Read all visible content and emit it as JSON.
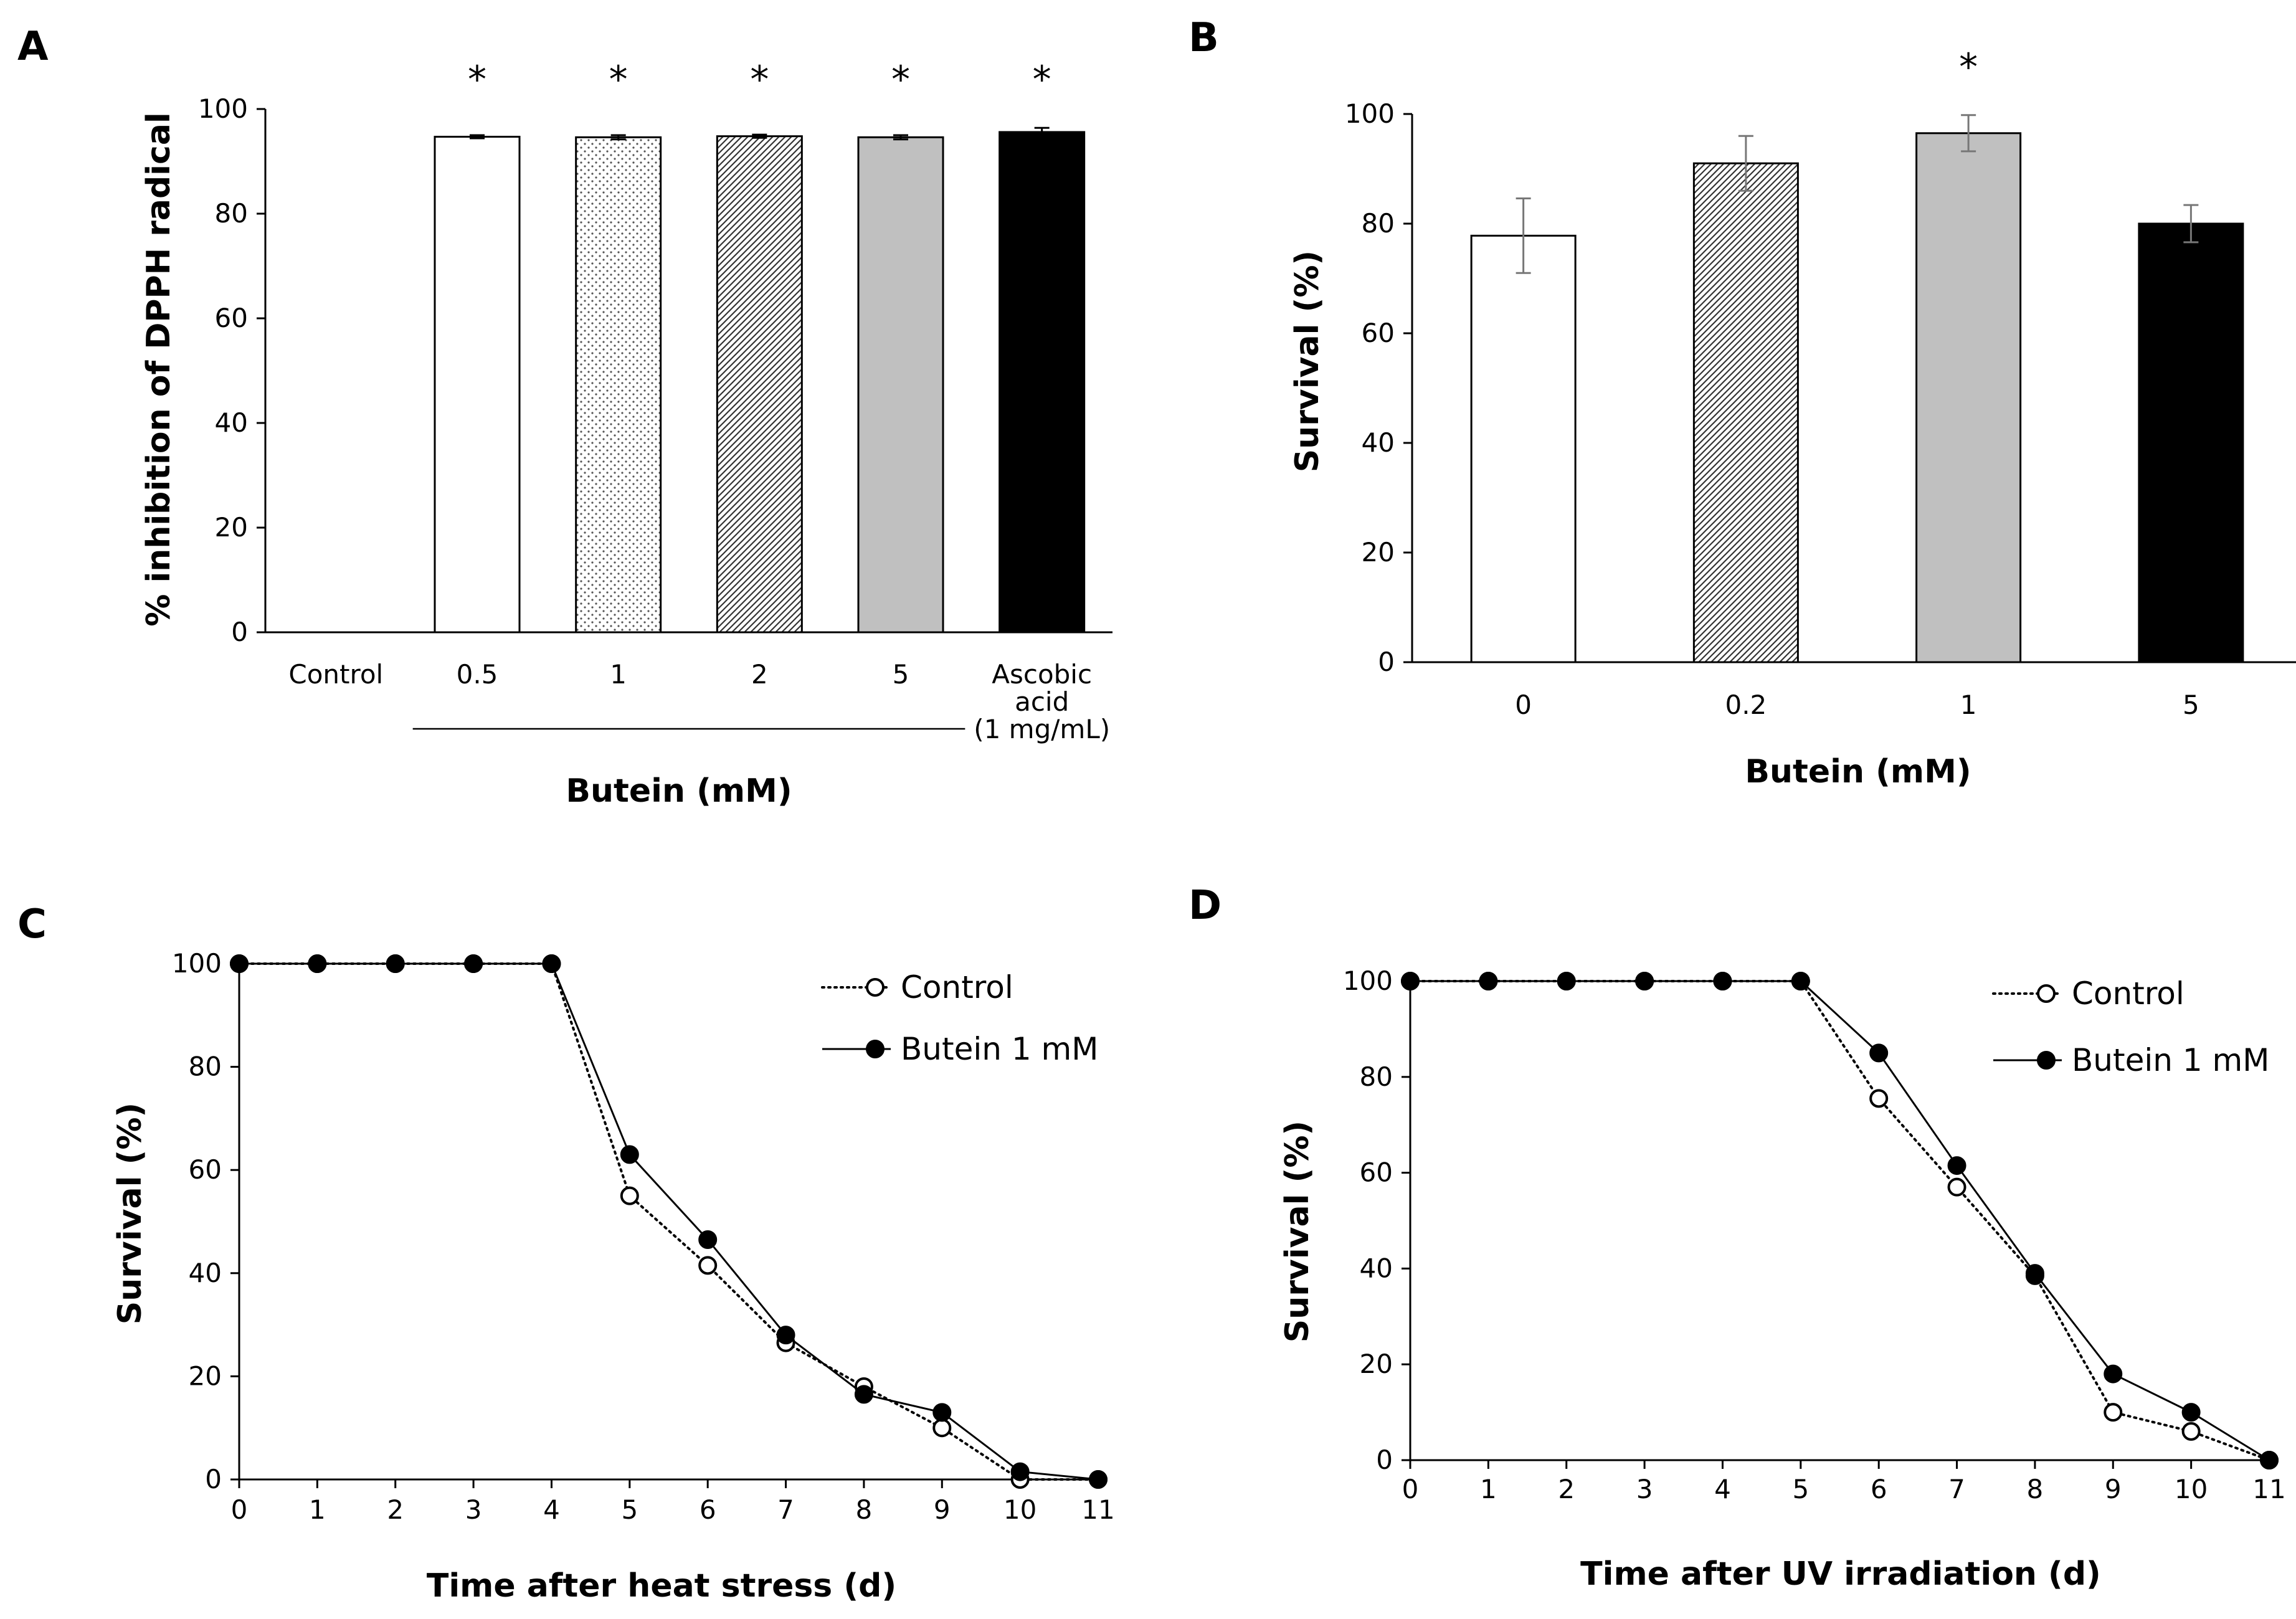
{
  "chart_data": [
    {
      "panel": "A",
      "type": "bar",
      "categories": [
        "Control",
        "0.5",
        "1",
        "2",
        "5",
        "Ascobic acid (1 mg/mL)"
      ],
      "category_lines": [
        [
          "Control"
        ],
        [
          "0.5"
        ],
        [
          "1"
        ],
        [
          "2"
        ],
        [
          "5"
        ],
        [
          "Ascobic",
          "acid",
          "(1 mg/mL)"
        ]
      ],
      "values": [
        0,
        94.7,
        94.6,
        94.8,
        94.6,
        95.6
      ],
      "errors": [
        0,
        0.3,
        0.4,
        0.3,
        0.4,
        0.8
      ],
      "fills": [
        "white",
        "white",
        "dots",
        "diagonal",
        "gray",
        "black"
      ],
      "significant": [
        false,
        true,
        true,
        true,
        true,
        true
      ],
      "significance_marker": "*",
      "ylabel": "% inhibition of DPPH radical",
      "xlabel": "Butein (mM)",
      "group_bracket": {
        "from_index": 1,
        "to_index": 4
      },
      "ylim": [
        0,
        100
      ],
      "yticks": [
        0,
        20,
        40,
        60,
        80,
        100
      ]
    },
    {
      "panel": "B",
      "type": "bar",
      "categories": [
        "0",
        "0.2",
        "1",
        "5"
      ],
      "category_lines": [
        [
          "0"
        ],
        [
          "0.2"
        ],
        [
          "1"
        ],
        [
          "5"
        ]
      ],
      "values": [
        77.8,
        91.0,
        96.5,
        80.0
      ],
      "errors": [
        6.8,
        5.0,
        3.3,
        3.4
      ],
      "fills": [
        "white",
        "diagonal",
        "gray",
        "black"
      ],
      "significant": [
        false,
        false,
        true,
        false
      ],
      "significance_marker": "*",
      "ylabel": "Survival (%)",
      "xlabel": "Butein (mM)",
      "ylim": [
        0,
        100
      ],
      "yticks": [
        0,
        20,
        40,
        60,
        80,
        100
      ]
    },
    {
      "panel": "C",
      "type": "line",
      "x": [
        0,
        1,
        2,
        3,
        4,
        5,
        6,
        7,
        8,
        9,
        10,
        11
      ],
      "series": [
        {
          "name": "Control",
          "style": "dotted-open",
          "values": [
            100,
            100,
            100,
            100,
            100,
            55,
            41.5,
            26.5,
            18,
            10,
            0,
            0
          ]
        },
        {
          "name": "Butein 1 mM",
          "style": "solid-filled",
          "values": [
            100,
            100,
            100,
            100,
            100,
            63,
            46.5,
            28,
            16.5,
            13,
            1.5,
            0
          ]
        }
      ],
      "xlabel": "Time after heat stress (d)",
      "ylabel": "Survival (%)",
      "xlim": [
        0,
        11
      ],
      "ylim": [
        0,
        100
      ],
      "yticks": [
        0,
        20,
        40,
        60,
        80,
        100
      ],
      "legend_position": "top-right"
    },
    {
      "panel": "D",
      "type": "line",
      "x": [
        0,
        1,
        2,
        3,
        4,
        5,
        6,
        7,
        8,
        9,
        10,
        11
      ],
      "series": [
        {
          "name": "Control",
          "style": "dotted-open",
          "values": [
            100,
            100,
            100,
            100,
            100,
            100,
            75.5,
            57,
            38.5,
            10,
            6,
            0
          ]
        },
        {
          "name": "Butein 1 mM",
          "style": "solid-filled",
          "values": [
            100,
            100,
            100,
            100,
            100,
            100,
            85,
            61.5,
            39,
            18,
            10,
            0
          ]
        }
      ],
      "xlabel": "Time after UV irradiation (d)",
      "ylabel": "Survival (%)",
      "xlim": [
        0,
        11
      ],
      "ylim": [
        0,
        100
      ],
      "yticks": [
        0,
        20,
        40,
        60,
        80,
        100
      ],
      "legend_position": "top-right"
    }
  ]
}
